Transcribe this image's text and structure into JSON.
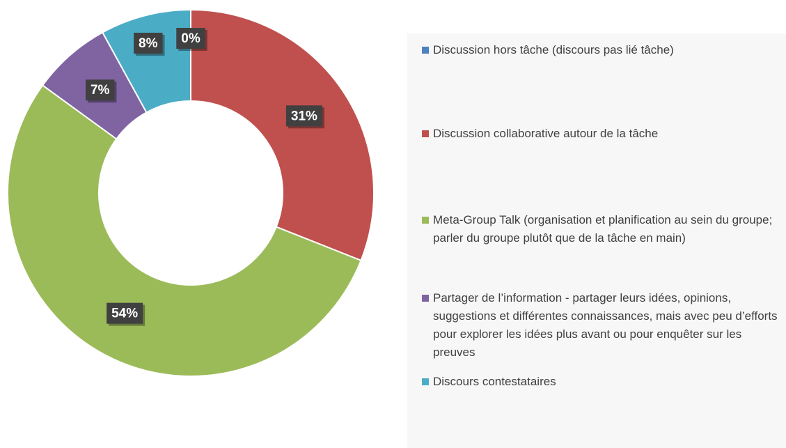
{
  "chart_data": {
    "type": "donut",
    "series": [
      {
        "name": "Discussion hors tâche (discours pas lié tâche)",
        "color": "#4f81bd"
      },
      {
        "name": "Discussion collaborative autour de la tâche",
        "color": "#c0504d"
      },
      {
        "name": "Meta-Group Talk (organisation et planification au sein du groupe; parler du groupe plutôt que de la tâche en main)",
        "color": "#9bbb59"
      },
      {
        "name": "Partager de l’information - partager leurs idées, opinions, suggestions et différentes connaissances, mais avec peu d’efforts pour explorer les idées plus avant ou pour enquêter sur les preuves",
        "color": "#8064a2"
      },
      {
        "name": "Discours contestataires",
        "color": "#4bacc6"
      }
    ],
    "values": [
      0,
      31,
      54,
      7,
      8
    ],
    "value_labels": [
      "0%",
      "31%",
      "54%",
      "7%",
      "8%"
    ],
    "legend": "right"
  }
}
